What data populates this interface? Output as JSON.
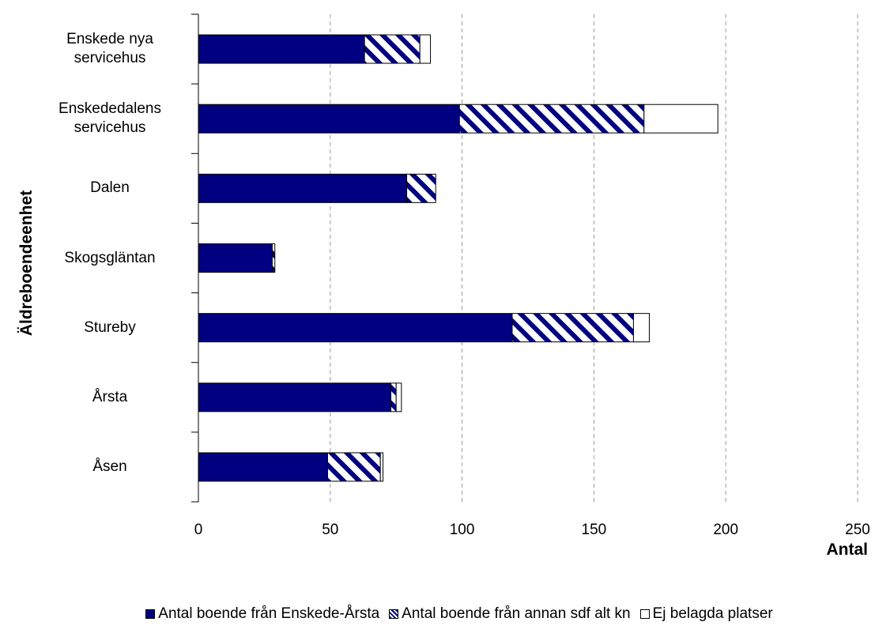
{
  "chart_data": {
    "type": "bar",
    "orientation": "horizontal",
    "stacked": true,
    "categories": [
      "Enskede nya servicehus",
      "Enskededalens servicehus",
      "Dalen",
      "Skogsgläntan",
      "Stureby",
      "Årsta",
      "Åsen"
    ],
    "series": [
      {
        "name": "Antal boende från Enskede-Årsta",
        "color": "#000080",
        "fill_style": "solid",
        "values": [
          63,
          99,
          79,
          28,
          119,
          73,
          49
        ]
      },
      {
        "name": "Antal boende från annan sdf alt kn",
        "color": "#000080",
        "fill_style": "hatch",
        "values": [
          21,
          70,
          11,
          1,
          46,
          2,
          20
        ]
      },
      {
        "name": "Ej belagda platser",
        "color": "#ffffff",
        "fill_style": "solid",
        "values": [
          4,
          28,
          0,
          0,
          6,
          2,
          1
        ]
      }
    ],
    "xlim": [
      0,
      250
    ],
    "xticks": [
      0,
      50,
      100,
      150,
      200,
      250
    ],
    "grid": true,
    "x_label": "Antal",
    "y_label": "Äldreboendeenhet"
  }
}
